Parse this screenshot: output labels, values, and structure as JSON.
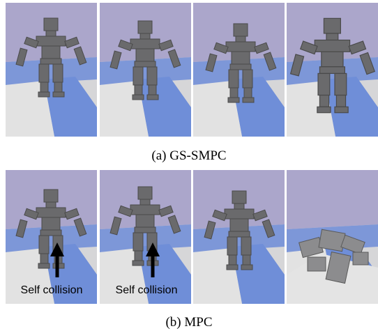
{
  "top_row": {
    "caption": "(a) GS-SMPC"
  },
  "bottom_row": {
    "caption": "(b) MPC",
    "annotations": [
      "Self collision",
      "Self collision"
    ]
  }
}
